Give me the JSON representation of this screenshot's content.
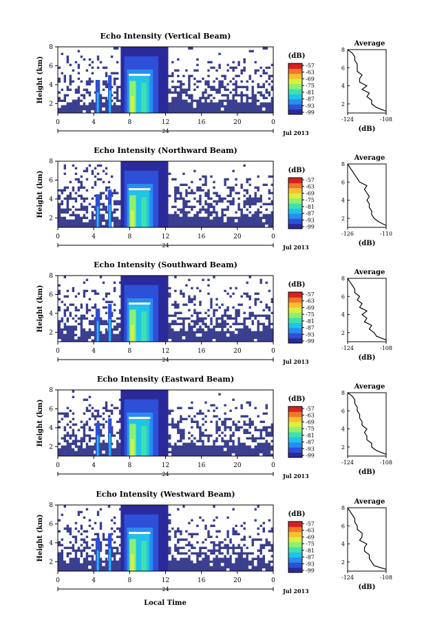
{
  "colors": {
    "background_fill": "#3a3f8f",
    "colormap": [
      "#2a2a9a",
      "#2e4fd8",
      "#2a8cf0",
      "#1fc3e8",
      "#3fe0b0",
      "#8ef070",
      "#d8f040",
      "#f8c030",
      "#f07828",
      "#d82020"
    ]
  },
  "figure": {
    "x_axis_title": "Local Time",
    "units_label": "(dB)",
    "profile_title": "Average",
    "colorbar_ticks": [
      "-57",
      "-63",
      "-69",
      "-75",
      "-81",
      "-87",
      "-93",
      "-99"
    ]
  },
  "chart_data": [
    {
      "type": "heatmap",
      "title": "Echo Intensity (Vertical Beam)",
      "ylabel": "Height (km)",
      "yticks": [
        "2",
        "4",
        "6",
        "8"
      ],
      "xticks": [
        "0",
        "4",
        "8",
        "12",
        "16",
        "20",
        "0"
      ],
      "xsub_label": "24",
      "date_label": "Jul 2013",
      "xlim": [
        0,
        24
      ],
      "ylim": [
        1,
        8
      ],
      "colorbar": {
        "label": "(dB)",
        "range": [
          -99,
          -57
        ]
      },
      "profile": {
        "title": "Average",
        "xlabel": "(dB)",
        "xticks": [
          "-124",
          "-108"
        ],
        "yticks": [
          "2",
          "4",
          "6",
          "8"
        ],
        "xlim": [
          -124,
          -108
        ],
        "ylim": [
          1,
          8
        ],
        "height_km": [
          1.2,
          1.6,
          2.0,
          2.4,
          2.8,
          3.2,
          3.6,
          4.0,
          4.4,
          4.8,
          5.2,
          5.6,
          6.0,
          6.4,
          6.8,
          7.2,
          7.6,
          8.0
        ],
        "values_db": [
          -108,
          -112,
          -114,
          -114,
          -116,
          -115,
          -118,
          -116,
          -119,
          -119,
          -118,
          -120,
          -120,
          -120,
          -121,
          -121,
          -122,
          -124
        ]
      }
    },
    {
      "type": "heatmap",
      "title": "Echo Intensity (Northward Beam)",
      "ylabel": "Height (km)",
      "yticks": [
        "2",
        "4",
        "6",
        "8"
      ],
      "xticks": [
        "0",
        "4",
        "8",
        "12",
        "16",
        "20",
        "0"
      ],
      "xsub_label": "24",
      "date_label": "Jul 2013",
      "xlim": [
        0,
        24
      ],
      "ylim": [
        1,
        8
      ],
      "colorbar": {
        "label": "(dB)",
        "range": [
          -99,
          -57
        ]
      },
      "profile": {
        "title": "Average",
        "xlabel": "(dB)",
        "xticks": [
          "-126",
          "-110"
        ],
        "yticks": [
          "2",
          "4",
          "6",
          "8"
        ],
        "xlim": [
          -126,
          -110
        ],
        "ylim": [
          1,
          8
        ],
        "height_km": [
          1.2,
          1.6,
          2.0,
          2.4,
          2.8,
          3.2,
          3.6,
          4.0,
          4.4,
          4.8,
          5.2,
          5.6,
          6.0,
          6.4,
          6.8,
          7.2,
          7.6,
          8.0
        ],
        "values_db": [
          -110,
          -113,
          -115,
          -116,
          -116,
          -117,
          -117,
          -118,
          -117,
          -118,
          -119,
          -118,
          -121,
          -122,
          -123,
          -124,
          -125,
          -126
        ]
      }
    },
    {
      "type": "heatmap",
      "title": "Echo Intensity (Southward Beam)",
      "ylabel": "Height (km)",
      "yticks": [
        "2",
        "4",
        "6",
        "8"
      ],
      "xticks": [
        "0",
        "4",
        "8",
        "12",
        "16",
        "20",
        "0"
      ],
      "xsub_label": "24",
      "date_label": "Jul 2013",
      "xlim": [
        0,
        24
      ],
      "ylim": [
        1,
        8
      ],
      "colorbar": {
        "label": "(dB)",
        "range": [
          -99,
          -57
        ]
      },
      "profile": {
        "title": "Average",
        "xlabel": "(dB)",
        "xticks": [
          "-124",
          "-108"
        ],
        "yticks": [
          "2",
          "4",
          "6",
          "8"
        ],
        "xlim": [
          -124,
          -108
        ],
        "ylim": [
          1,
          8
        ],
        "height_km": [
          1.2,
          1.6,
          2.0,
          2.4,
          2.8,
          3.2,
          3.6,
          4.0,
          4.4,
          4.8,
          5.2,
          5.6,
          6.0,
          6.4,
          6.8,
          7.2,
          7.6,
          8.0
        ],
        "values_db": [
          -108,
          -112,
          -113,
          -115,
          -114,
          -117,
          -116,
          -118,
          -116,
          -119,
          -118,
          -120,
          -119,
          -121,
          -121,
          -122,
          -123,
          -124
        ]
      }
    },
    {
      "type": "heatmap",
      "title": "Echo Intensity (Eastward Beam)",
      "ylabel": "Height (km)",
      "yticks": [
        "2",
        "4",
        "6",
        "8"
      ],
      "xticks": [
        "0",
        "4",
        "8",
        "12",
        "16",
        "20",
        "0"
      ],
      "xsub_label": "24",
      "date_label": "Jul 2013",
      "xlim": [
        0,
        24
      ],
      "ylim": [
        1,
        8
      ],
      "colorbar": {
        "label": "(dB)",
        "range": [
          -99,
          -57
        ]
      },
      "profile": {
        "title": "Average",
        "xlabel": "(dB)",
        "xticks": [
          "-124",
          "-108"
        ],
        "yticks": [
          "2",
          "4",
          "6",
          "8"
        ],
        "xlim": [
          -124,
          -108
        ],
        "ylim": [
          1,
          8
        ],
        "height_km": [
          1.2,
          1.6,
          2.0,
          2.4,
          2.8,
          3.2,
          3.6,
          4.0,
          4.4,
          4.8,
          5.2,
          5.6,
          6.0,
          6.4,
          6.8,
          7.2,
          7.6,
          8.0
        ],
        "values_db": [
          -108,
          -112,
          -114,
          -114,
          -116,
          -116,
          -117,
          -116,
          -118,
          -118,
          -119,
          -119,
          -120,
          -120,
          -121,
          -121,
          -122,
          -124
        ]
      }
    },
    {
      "type": "heatmap",
      "title": "Echo Intensity (Westward Beam)",
      "ylabel": "Height (km)",
      "yticks": [
        "2",
        "4",
        "6",
        "8"
      ],
      "xticks": [
        "0",
        "4",
        "8",
        "12",
        "16",
        "20",
        "0"
      ],
      "xsub_label": "24",
      "date_label": "Jul 2013",
      "xlim": [
        0,
        24
      ],
      "ylim": [
        1,
        8
      ],
      "colorbar": {
        "label": "(dB)",
        "range": [
          -99,
          -57
        ]
      },
      "profile": {
        "title": "Average",
        "xlabel": "(dB)",
        "xticks": [
          "-124",
          "-108"
        ],
        "yticks": [
          "2",
          "4",
          "6",
          "8"
        ],
        "xlim": [
          -124,
          -108
        ],
        "ylim": [
          1,
          8
        ],
        "height_km": [
          1.2,
          1.6,
          2.0,
          2.4,
          2.8,
          3.2,
          3.6,
          4.0,
          4.4,
          4.8,
          5.2,
          5.6,
          6.0,
          6.4,
          6.8,
          7.2,
          7.6,
          8.0
        ],
        "values_db": [
          -108,
          -113,
          -114,
          -115,
          -115,
          -117,
          -117,
          -116,
          -119,
          -118,
          -118,
          -120,
          -120,
          -121,
          -121,
          -122,
          -123,
          -124
        ]
      }
    }
  ]
}
